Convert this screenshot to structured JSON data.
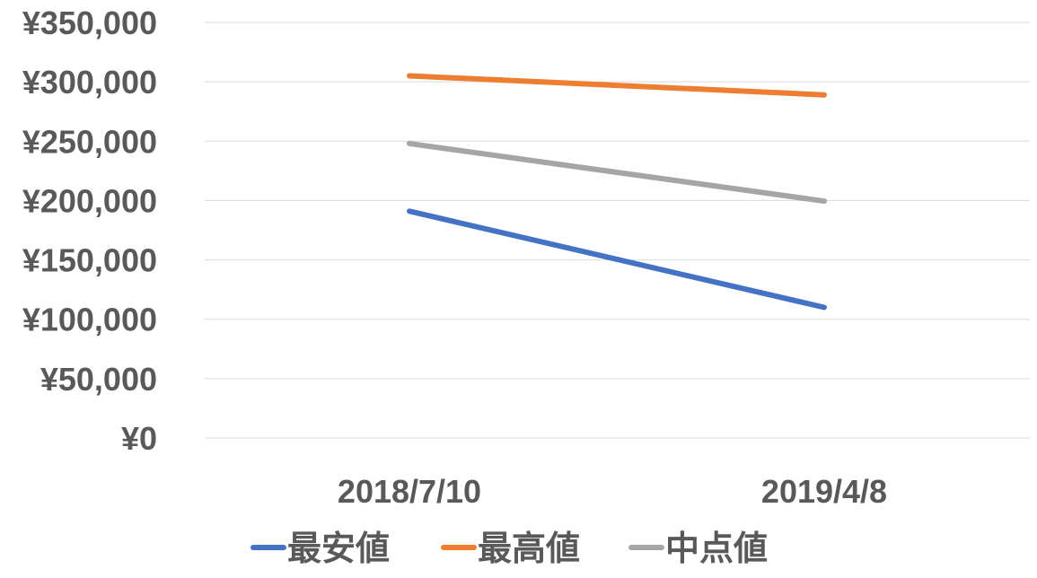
{
  "chart_data": {
    "type": "line",
    "x": [
      "2018/7/10",
      "2019/4/8"
    ],
    "ylim": [
      0,
      350000
    ],
    "yticks": [
      0,
      50000,
      100000,
      150000,
      200000,
      250000,
      300000,
      350000
    ],
    "ytick_labels": [
      "¥0",
      "¥50,000",
      "¥100,000",
      "¥150,000",
      "¥200,000",
      "¥250,000",
      "¥300,000",
      "¥350,000"
    ],
    "grid": true,
    "legend_position": "bottom",
    "series": [
      {
        "name": "最安値",
        "color": "#4472C4",
        "values": [
          191000,
          110000
        ]
      },
      {
        "name": "最高値",
        "color": "#ED7D31",
        "values": [
          305000,
          289000
        ]
      },
      {
        "name": "中点値",
        "color": "#A5A5A5",
        "values": [
          248000,
          199500
        ]
      }
    ]
  }
}
